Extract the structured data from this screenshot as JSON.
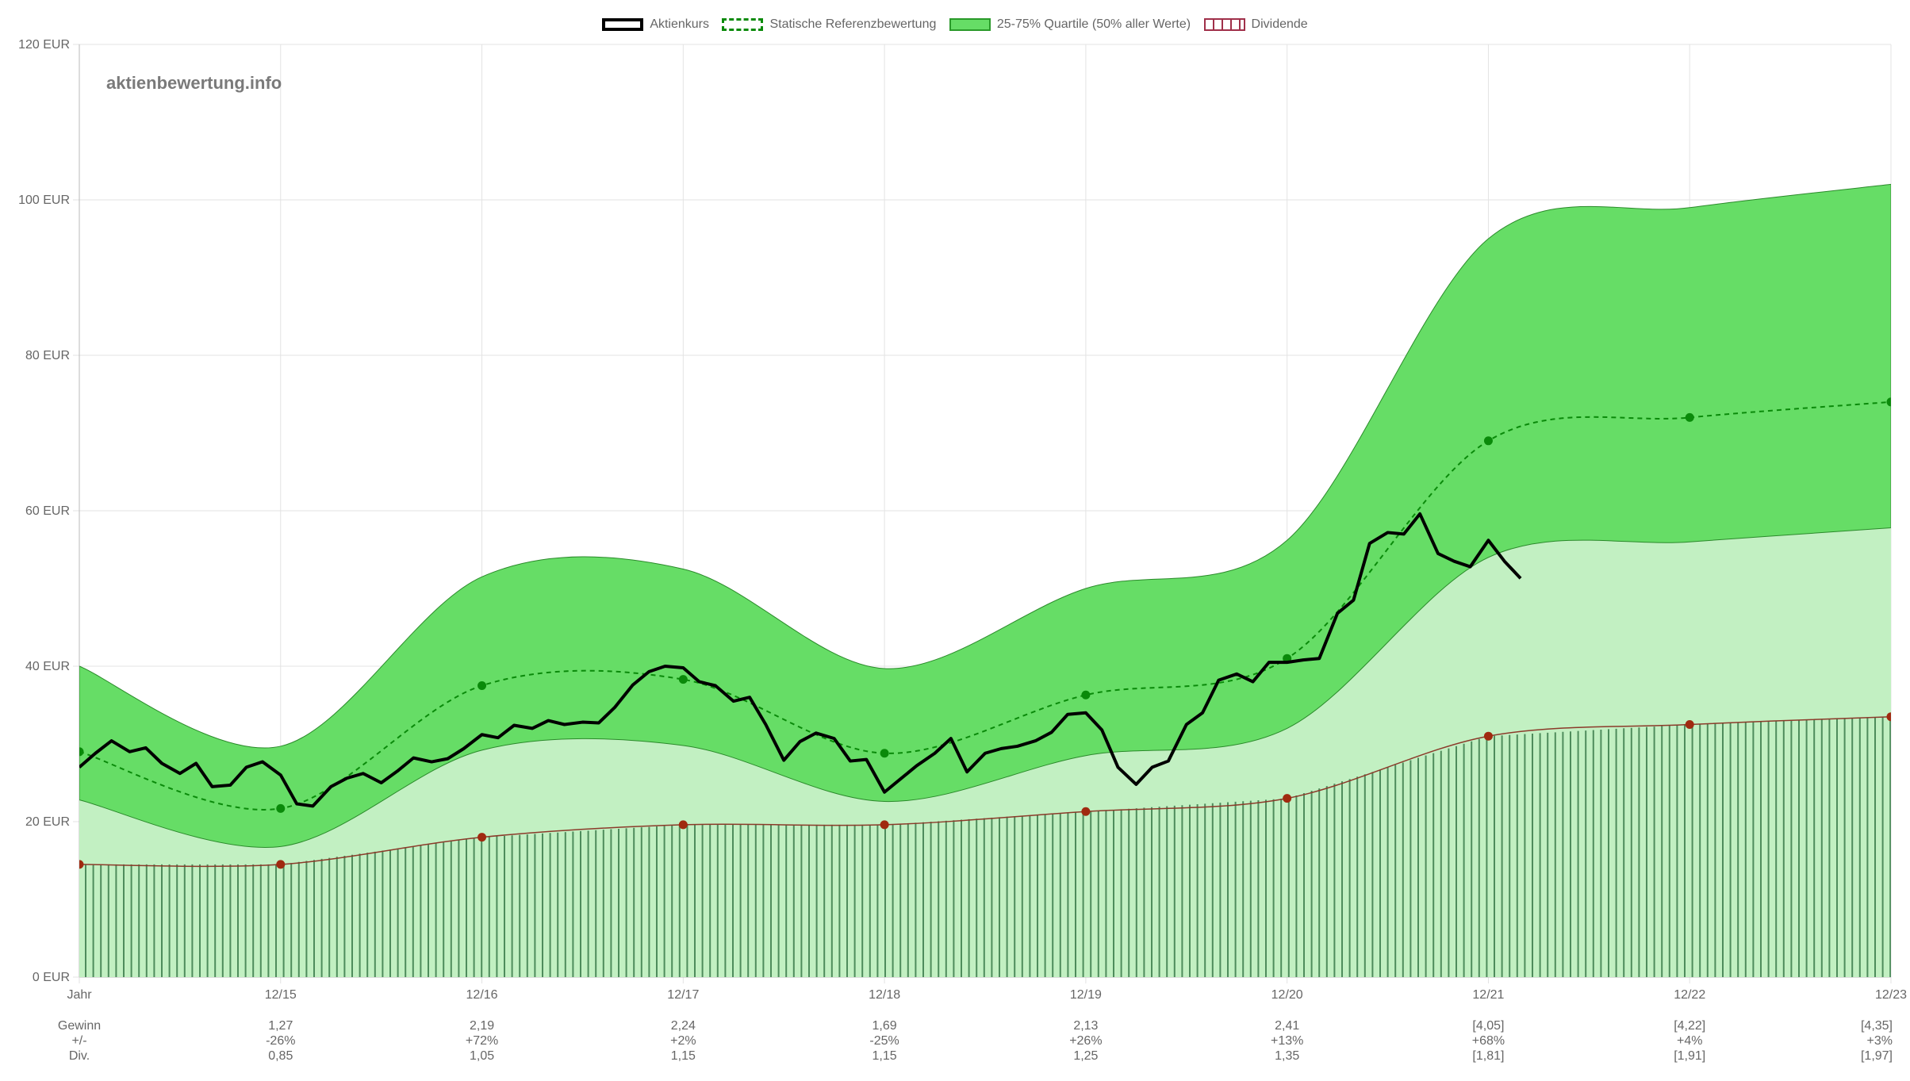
{
  "legend": {
    "price": "Aktienkurs",
    "reference": "Statische Referenzbewertung",
    "quartile": "25-75% Quartile (50% aller Werte)",
    "dividend": "Dividende"
  },
  "watermark": "aktienbewertung.info",
  "chart_data": {
    "type": "area",
    "y_unit": "EUR",
    "ylim": [
      0,
      120
    ],
    "y_ticks": [
      "0 EUR",
      "20 EUR",
      "40 EUR",
      "60 EUR",
      "80 EUR",
      "100 EUR",
      "120 EUR"
    ],
    "y_tick_values": [
      0,
      20,
      40,
      60,
      80,
      100,
      120
    ],
    "x_labels": [
      "Jahr",
      "12/15",
      "12/16",
      "12/17",
      "12/18",
      "12/19",
      "12/20",
      "12/21",
      "12/22",
      "12/23"
    ],
    "x_range": [
      2014,
      2023
    ],
    "grid": true,
    "legend_position": "top-center",
    "colors": {
      "quartile_dark": "#66dd66",
      "quartile_light": "#c2f0c2",
      "reference": "#0a8a0a",
      "price": "#000000",
      "dividend_line": "#8b3a2a",
      "dividend_dot": "#a02a10",
      "dividend_hatch": "#3a7a4a"
    },
    "reference": {
      "x": [
        2014,
        2015,
        2016,
        2017,
        2018,
        2019,
        2020,
        2021,
        2022,
        2023
      ],
      "y": [
        29.0,
        21.7,
        37.5,
        38.3,
        28.8,
        36.3,
        41.0,
        69.0,
        72.0,
        74.0
      ]
    },
    "quartile_upper": {
      "x": [
        2014,
        2015,
        2016,
        2017,
        2018,
        2019,
        2020,
        2021,
        2022,
        2023
      ],
      "y": [
        40.0,
        29.7,
        51.5,
        52.5,
        39.7,
        50.0,
        56.2,
        95.0,
        99.0,
        102.0
      ]
    },
    "quartile_lower": {
      "x": [
        2014,
        2015,
        2016,
        2017,
        2018,
        2019,
        2020,
        2021,
        2022,
        2023
      ],
      "y": [
        22.8,
        16.8,
        29.2,
        29.8,
        22.6,
        28.5,
        32.0,
        54.0,
        56.0,
        57.8
      ]
    },
    "dividend_line": {
      "x": [
        2014,
        2015,
        2016,
        2017,
        2018,
        2019,
        2020,
        2021,
        2022,
        2023
      ],
      "y": [
        14.5,
        14.5,
        18.0,
        19.6,
        19.6,
        21.3,
        23.0,
        31.0,
        32.5,
        33.5
      ]
    },
    "price": {
      "x": [
        2014.0,
        2014.08,
        2014.16,
        2014.25,
        2014.33,
        2014.41,
        2014.5,
        2014.58,
        2014.66,
        2014.75,
        2014.83,
        2014.91,
        2015.0,
        2015.08,
        2015.16,
        2015.25,
        2015.33,
        2015.41,
        2015.5,
        2015.58,
        2015.66,
        2015.75,
        2015.83,
        2015.91,
        2016.0,
        2016.08,
        2016.16,
        2016.25,
        2016.33,
        2016.41,
        2016.5,
        2016.58,
        2016.66,
        2016.75,
        2016.83,
        2016.91,
        2017.0,
        2017.08,
        2017.16,
        2017.25,
        2017.33,
        2017.41,
        2017.5,
        2017.58,
        2017.66,
        2017.75,
        2017.83,
        2017.91,
        2018.0,
        2018.08,
        2018.16,
        2018.25,
        2018.33,
        2018.41,
        2018.5,
        2018.58,
        2018.66,
        2018.75,
        2018.83,
        2018.91,
        2019.0,
        2019.08,
        2019.16,
        2019.25,
        2019.33,
        2019.41,
        2019.5,
        2019.58,
        2019.66,
        2019.75,
        2019.83,
        2019.91,
        2020.0,
        2020.08,
        2020.16,
        2020.25,
        2020.33,
        2020.41,
        2020.5,
        2020.58,
        2020.66,
        2020.75,
        2020.83,
        2020.91,
        2021.0,
        2021.08,
        2021.16
      ],
      "y": [
        27.0,
        28.8,
        30.4,
        29.0,
        29.5,
        27.5,
        26.2,
        27.5,
        24.5,
        24.7,
        27.0,
        27.7,
        26.0,
        22.3,
        22.0,
        24.5,
        25.6,
        26.2,
        25.0,
        26.5,
        28.2,
        27.7,
        28.1,
        29.4,
        31.2,
        30.8,
        32.4,
        32.0,
        33.0,
        32.5,
        32.8,
        32.7,
        34.7,
        37.6,
        39.3,
        40.0,
        39.8,
        38.0,
        37.5,
        35.5,
        36.0,
        32.5,
        27.9,
        30.3,
        31.4,
        30.7,
        27.8,
        28.0,
        23.8,
        25.5,
        27.2,
        28.8,
        30.7,
        26.4,
        28.8,
        29.4,
        29.7,
        30.4,
        31.5,
        33.8,
        34.0,
        31.8,
        27.0,
        24.8,
        27.0,
        27.8,
        32.5,
        34.0,
        38.2,
        39.0,
        38.0,
        40.5,
        40.5,
        40.8,
        41.0,
        46.8,
        48.5,
        55.8,
        57.2,
        57.0,
        59.6,
        54.5,
        53.5,
        52.8,
        56.2,
        53.5,
        51.3
      ]
    }
  },
  "footer_table": {
    "row_labels": [
      "Gewinn",
      "+/-",
      "Div."
    ],
    "columns": [
      {
        "gewinn": "1,27",
        "change": "-26%",
        "div": "0,85"
      },
      {
        "gewinn": "2,19",
        "change": "+72%",
        "div": "1,05"
      },
      {
        "gewinn": "2,24",
        "change": "+2%",
        "div": "1,15"
      },
      {
        "gewinn": "1,69",
        "change": "-25%",
        "div": "1,15"
      },
      {
        "gewinn": "2,13",
        "change": "+26%",
        "div": "1,25"
      },
      {
        "gewinn": "2,41",
        "change": "+13%",
        "div": "1,35"
      },
      {
        "gewinn": "[4,05]",
        "change": "+68%",
        "div": "[1,81]"
      },
      {
        "gewinn": "[4,22]",
        "change": "+4%",
        "div": "[1,91]"
      },
      {
        "gewinn": "[4,35]",
        "change": "+3%",
        "div": "[1,97]"
      }
    ]
  }
}
